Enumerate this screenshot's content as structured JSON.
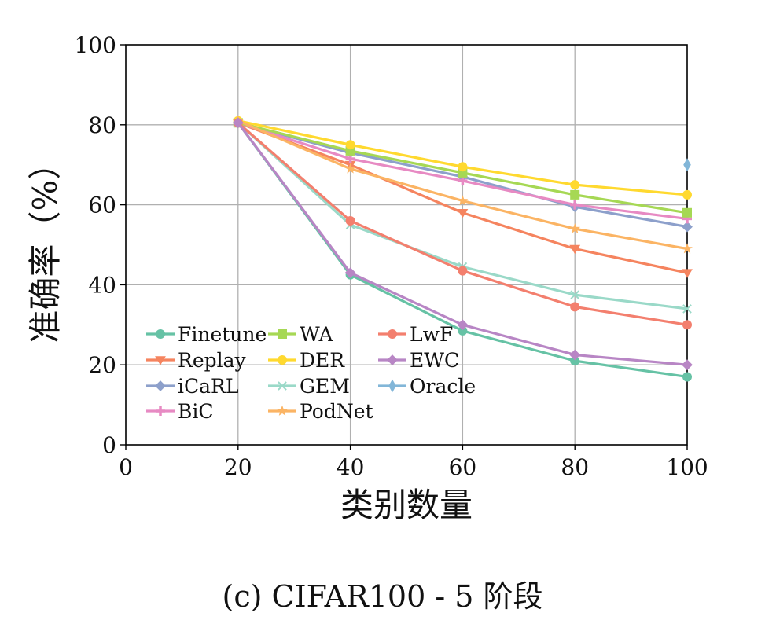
{
  "chart_data": {
    "type": "line",
    "xlabel": "类别数量",
    "ylabel": "准确率（%）",
    "xlim": [
      0,
      100
    ],
    "ylim": [
      0,
      100
    ],
    "xticks": [
      0,
      20,
      40,
      60,
      80,
      100
    ],
    "yticks": [
      0,
      20,
      40,
      60,
      80,
      100
    ],
    "grid": true,
    "legend_position": "lower-left",
    "legend_columns": 3,
    "series": [
      {
        "name": "Finetune",
        "color": "#66c2a5",
        "marker": "circle",
        "x": [
          20,
          40,
          60,
          80,
          100
        ],
        "y": [
          80.5,
          42.5,
          28.5,
          21.0,
          17.0
        ]
      },
      {
        "name": "Replay",
        "color": "#f5845f",
        "marker": "tri-down",
        "x": [
          20,
          40,
          60,
          80,
          100
        ],
        "y": [
          80.5,
          70.0,
          58.0,
          49.0,
          43.0
        ]
      },
      {
        "name": "iCaRL",
        "color": "#8da0cb",
        "marker": "diamond",
        "x": [
          20,
          40,
          60,
          80,
          100
        ],
        "y": [
          80.5,
          73.0,
          67.0,
          59.5,
          54.5
        ]
      },
      {
        "name": "BiC",
        "color": "#e78ac3",
        "marker": "plus",
        "x": [
          20,
          40,
          60,
          80,
          100
        ],
        "y": [
          80.5,
          71.5,
          66.0,
          60.0,
          56.5
        ]
      },
      {
        "name": "WA",
        "color": "#a6d854",
        "marker": "square",
        "x": [
          20,
          40,
          60,
          80,
          100
        ],
        "y": [
          80.5,
          73.5,
          68.0,
          62.5,
          58.0
        ]
      },
      {
        "name": "DER",
        "color": "#ffd92f",
        "marker": "circle",
        "x": [
          20,
          40,
          60,
          80,
          100
        ],
        "y": [
          81.0,
          75.0,
          69.5,
          65.0,
          62.5
        ]
      },
      {
        "name": "GEM",
        "color": "#9ad9c8",
        "marker": "x",
        "x": [
          20,
          40,
          60,
          80,
          100
        ],
        "y": [
          80.5,
          55.0,
          44.5,
          37.5,
          34.0
        ]
      },
      {
        "name": "PodNet",
        "color": "#fbb464",
        "marker": "star",
        "x": [
          20,
          40,
          60,
          80,
          100
        ],
        "y": [
          81.0,
          69.0,
          61.0,
          54.0,
          49.0
        ]
      },
      {
        "name": "LwF",
        "color": "#f37f6e",
        "marker": "circle",
        "x": [
          20,
          40,
          60,
          80,
          100
        ],
        "y": [
          80.5,
          56.0,
          43.5,
          34.5,
          30.0
        ]
      },
      {
        "name": "EWC",
        "color": "#b886c5",
        "marker": "diamond",
        "x": [
          20,
          40,
          60,
          80,
          100
        ],
        "y": [
          80.5,
          43.0,
          30.0,
          22.5,
          20.0
        ]
      },
      {
        "name": "Oracle",
        "color": "#82b6d8",
        "marker": "thin-diamond",
        "x": [
          100
        ],
        "y": [
          70.0
        ]
      }
    ]
  },
  "caption": "(c)  CIFAR100 - 5 阶段"
}
